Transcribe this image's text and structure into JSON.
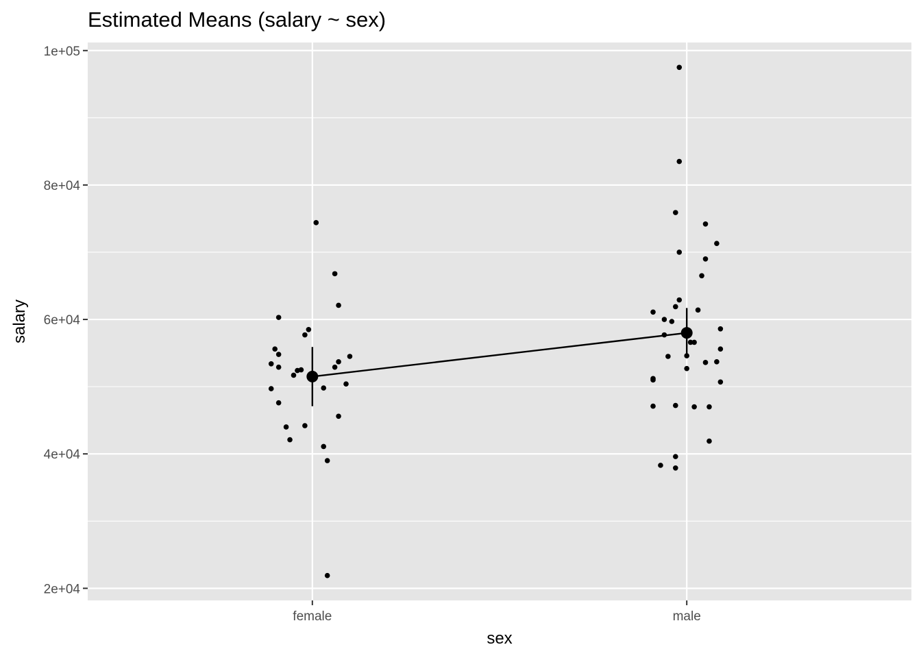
{
  "chart_data": {
    "type": "scatter",
    "title": "Estimated Means (salary ~ sex)",
    "xlabel": "sex",
    "ylabel": "salary",
    "categories": [
      "female",
      "male"
    ],
    "ylim": [
      18200,
      101200
    ],
    "yticks": [
      20000,
      40000,
      60000,
      80000,
      100000
    ],
    "ytick_labels": [
      "2e+04",
      "4e+04",
      "6e+04",
      "8e+04",
      "1e+05"
    ],
    "grid": true,
    "background": "#e5e5e5",
    "gridline_color": "#ffffff",
    "point_color": "#000000",
    "estimated_means": [
      {
        "category": "female",
        "mean": 51500,
        "ci": [
          47100,
          55900
        ]
      },
      {
        "category": "male",
        "mean": 58000,
        "ci": [
          54500,
          61700
        ]
      }
    ],
    "points": [
      {
        "category": "female",
        "x": 0.91,
        "y": 60300
      },
      {
        "category": "female",
        "x": 0.9,
        "y": 55600
      },
      {
        "category": "female",
        "x": 0.91,
        "y": 54800
      },
      {
        "category": "female",
        "x": 0.89,
        "y": 53400
      },
      {
        "category": "female",
        "x": 0.91,
        "y": 52900
      },
      {
        "category": "female",
        "x": 0.89,
        "y": 49700
      },
      {
        "category": "female",
        "x": 0.91,
        "y": 47600
      },
      {
        "category": "female",
        "x": 0.93,
        "y": 44000
      },
      {
        "category": "female",
        "x": 0.94,
        "y": 42100
      },
      {
        "category": "female",
        "x": 0.95,
        "y": 51700
      },
      {
        "category": "female",
        "x": 0.96,
        "y": 52400
      },
      {
        "category": "female",
        "x": 0.97,
        "y": 52500
      },
      {
        "category": "female",
        "x": 0.98,
        "y": 57700
      },
      {
        "category": "female",
        "x": 0.99,
        "y": 58500
      },
      {
        "category": "female",
        "x": 0.98,
        "y": 44200
      },
      {
        "category": "female",
        "x": 1.01,
        "y": 74400
      },
      {
        "category": "female",
        "x": 1.03,
        "y": 49800
      },
      {
        "category": "female",
        "x": 1.03,
        "y": 41100
      },
      {
        "category": "female",
        "x": 1.04,
        "y": 39000
      },
      {
        "category": "female",
        "x": 1.04,
        "y": 21900
      },
      {
        "category": "female",
        "x": 1.06,
        "y": 66800
      },
      {
        "category": "female",
        "x": 1.06,
        "y": 52900
      },
      {
        "category": "female",
        "x": 1.07,
        "y": 53700
      },
      {
        "category": "female",
        "x": 1.07,
        "y": 45600
      },
      {
        "category": "female",
        "x": 1.07,
        "y": 62100
      },
      {
        "category": "female",
        "x": 1.1,
        "y": 54500
      },
      {
        "category": "female",
        "x": 1.09,
        "y": 50400
      },
      {
        "category": "male",
        "x": 1.91,
        "y": 61100
      },
      {
        "category": "male",
        "x": 1.91,
        "y": 51200
      },
      {
        "category": "male",
        "x": 1.91,
        "y": 51000
      },
      {
        "category": "male",
        "x": 1.91,
        "y": 47100
      },
      {
        "category": "male",
        "x": 1.94,
        "y": 60000
      },
      {
        "category": "male",
        "x": 1.94,
        "y": 57700
      },
      {
        "category": "male",
        "x": 1.95,
        "y": 54500
      },
      {
        "category": "male",
        "x": 1.93,
        "y": 38300
      },
      {
        "category": "male",
        "x": 1.96,
        "y": 59700
      },
      {
        "category": "male",
        "x": 1.97,
        "y": 61900
      },
      {
        "category": "male",
        "x": 1.98,
        "y": 62900
      },
      {
        "category": "male",
        "x": 1.97,
        "y": 75900
      },
      {
        "category": "male",
        "x": 1.97,
        "y": 47200
      },
      {
        "category": "male",
        "x": 1.97,
        "y": 39600
      },
      {
        "category": "male",
        "x": 1.97,
        "y": 37900
      },
      {
        "category": "male",
        "x": 1.98,
        "y": 97500
      },
      {
        "category": "male",
        "x": 1.98,
        "y": 83500
      },
      {
        "category": "male",
        "x": 1.98,
        "y": 70000
      },
      {
        "category": "male",
        "x": 2.0,
        "y": 54600
      },
      {
        "category": "male",
        "x": 2.0,
        "y": 52700
      },
      {
        "category": "male",
        "x": 2.01,
        "y": 56600
      },
      {
        "category": "male",
        "x": 2.02,
        "y": 56600
      },
      {
        "category": "male",
        "x": 2.02,
        "y": 47000
      },
      {
        "category": "male",
        "x": 2.03,
        "y": 61400
      },
      {
        "category": "male",
        "x": 2.04,
        "y": 66500
      },
      {
        "category": "male",
        "x": 2.05,
        "y": 74200
      },
      {
        "category": "male",
        "x": 2.05,
        "y": 69000
      },
      {
        "category": "male",
        "x": 2.05,
        "y": 53600
      },
      {
        "category": "male",
        "x": 2.06,
        "y": 47000
      },
      {
        "category": "male",
        "x": 2.06,
        "y": 41900
      },
      {
        "category": "male",
        "x": 2.08,
        "y": 71300
      },
      {
        "category": "male",
        "x": 2.08,
        "y": 53700
      },
      {
        "category": "male",
        "x": 2.09,
        "y": 58600
      },
      {
        "category": "male",
        "x": 2.09,
        "y": 50700
      },
      {
        "category": "male",
        "x": 2.09,
        "y": 55600
      }
    ]
  }
}
